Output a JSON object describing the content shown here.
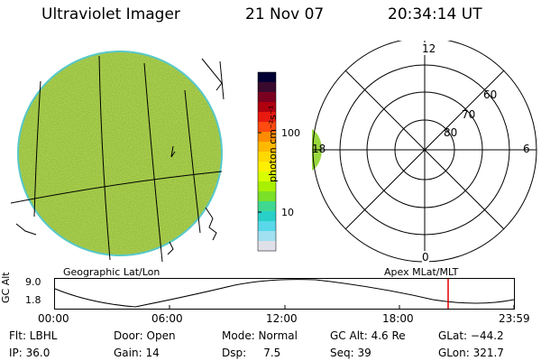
{
  "header": {
    "instrument": "Ultraviolet Imager",
    "date": "21 Nov 07",
    "time": "20:34:14 UT"
  },
  "colorbar": {
    "label": "photon cm⁻²s⁻¹",
    "ticks": [
      "100",
      "10"
    ],
    "colors": [
      "#000033",
      "#3a0a2e",
      "#7a0020",
      "#b00010",
      "#e81a10",
      "#ff4a10",
      "#ff8c00",
      "#ffb800",
      "#ffd800",
      "#fff000",
      "#d8ff00",
      "#a8f000",
      "#7ae028",
      "#40d890",
      "#28d0c8",
      "#58d8e8",
      "#a0e0f0",
      "#e0e0e8"
    ]
  },
  "polar": {
    "labels": [
      "12",
      "60",
      "70",
      "80",
      "18",
      "6",
      "0"
    ]
  },
  "image_labels": {
    "left": "Geographic Lat/Lon",
    "right": "Apex MLat/MLT"
  },
  "alt_plot": {
    "axis_label": "GC Alt",
    "ymax": "9.0",
    "ymin": "1.8",
    "xticks": [
      "00:00",
      "06:00",
      "12:00",
      "18:00",
      "23:59"
    ],
    "current_time_color": "#dd0000"
  },
  "status": {
    "flt": "Flt: LBHL",
    "ip": "IP: 36.0",
    "door": "Door: Open",
    "gain": "Gain: 14",
    "mode": "Mode: Normal",
    "dsp": "Dsp:     7.5",
    "gcalt": "GC Alt: 4.6 Re",
    "seq": "Seq: 39",
    "glat": "GLat: −44.2",
    "glon": "GLon: 321.7"
  }
}
